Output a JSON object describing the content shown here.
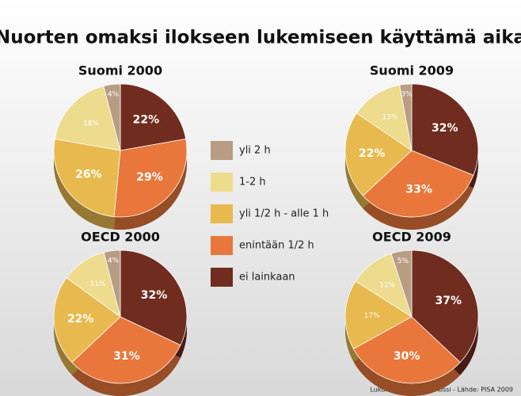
{
  "title": "Nuorten omaksi ilokseen lukemiseen käyttämä aika",
  "source": "Lukukeskus/ Sampo Rossi - Lähde: PISA 2009",
  "chart_data": [
    {
      "type": "pie",
      "title": "Suomi 2000",
      "categories": [
        "yli 2 h",
        "1-2 h",
        "yli 1/2 h - alle 1 h",
        "enintään 1/2 h",
        "ei lainkaan"
      ],
      "colors": [
        "#b89c84",
        "#eddb8e",
        "#e8b94e",
        "#e9773b",
        "#6f2c1f"
      ],
      "values": [
        4,
        18,
        26,
        29,
        22
      ],
      "value_labels": [
        "4%",
        "18%",
        "26%",
        "29%",
        "22%"
      ]
    },
    {
      "type": "pie",
      "title": "Suomi 2009",
      "categories": [
        "yli 2 h",
        "1-2 h",
        "yli 1/2 h - alle 1 h",
        "enintään 1/2 h",
        "ei lainkaan"
      ],
      "colors": [
        "#b89c84",
        "#eddb8e",
        "#e8b94e",
        "#e9773b",
        "#6f2c1f"
      ],
      "values": [
        3,
        13,
        22,
        33,
        32
      ],
      "value_labels": [
        "3%",
        "13%",
        "22%",
        "33%",
        "32%"
      ]
    },
    {
      "type": "pie",
      "title": "OECD 2000",
      "categories": [
        "yli 2 h",
        "1-2 h",
        "yli 1/2 h - alle 1 h",
        "enintään 1/2 h",
        "ei lainkaan"
      ],
      "colors": [
        "#b89c84",
        "#eddb8e",
        "#e8b94e",
        "#e9773b",
        "#6f2c1f"
      ],
      "values": [
        4,
        11,
        22,
        31,
        32
      ],
      "value_labels": [
        "4%",
        "11%",
        "22%",
        "31%",
        "32%"
      ]
    },
    {
      "type": "pie",
      "title": "OECD 2009",
      "categories": [
        "yli 2 h",
        "1-2 h",
        "yli 1/2 h - alle 1 h",
        "enintään 1/2 h",
        "ei lainkaan"
      ],
      "colors": [
        "#b89c84",
        "#eddb8e",
        "#e8b94e",
        "#e9773b",
        "#6f2c1f"
      ],
      "values": [
        5,
        11,
        17,
        30,
        37
      ],
      "value_labels": [
        "5%",
        "11%",
        "17%",
        "30%",
        "37%"
      ]
    }
  ]
}
